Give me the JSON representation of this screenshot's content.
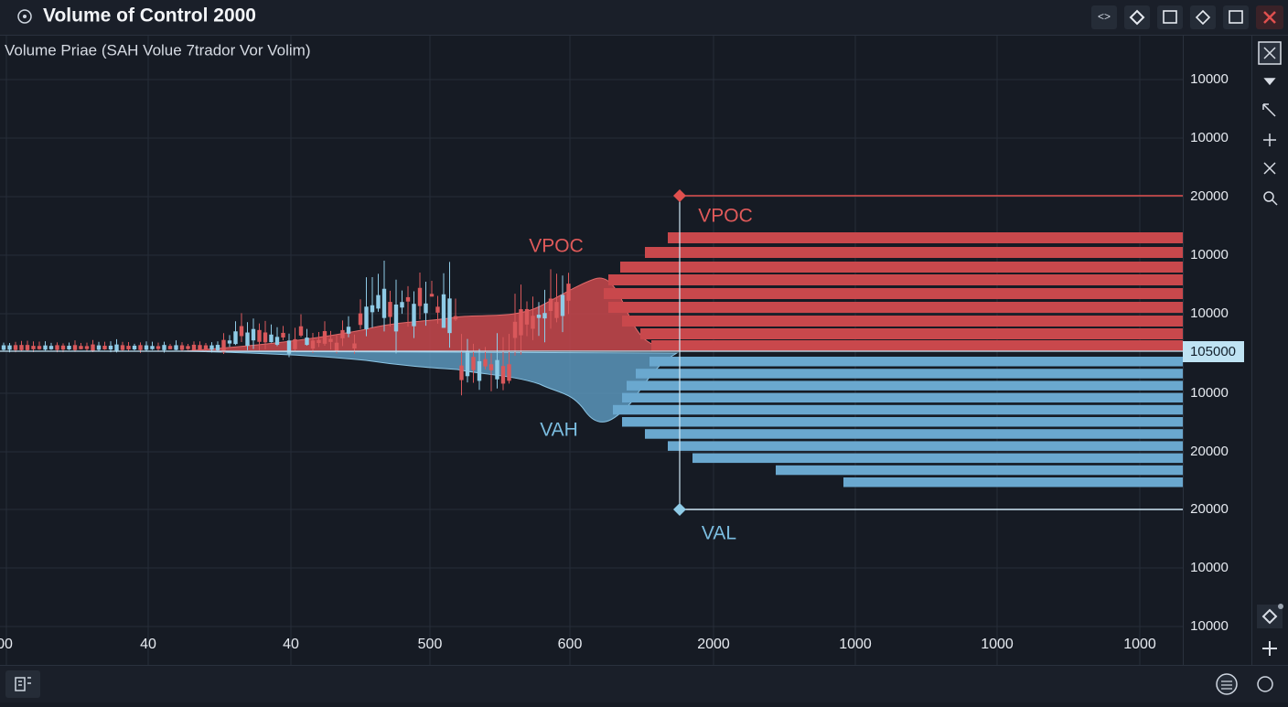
{
  "header": {
    "title": "Volume of Control 2000"
  },
  "subtitle": "Volume Priae (SAH Volue 7trador Vor Volim)",
  "price_axis": [
    "10000",
    "10000",
    "20000",
    "10000",
    "10000",
    "10000",
    "20000",
    "20000",
    "10000",
    "10000"
  ],
  "price_tag": "105000",
  "time_axis": [
    "00",
    "40",
    "40",
    "500",
    "600",
    "2000",
    "1000",
    "1000",
    "1000"
  ],
  "annotations": {
    "vpoc_left": "VPOC",
    "vpoc_right": "VPOC",
    "vah": "VAH",
    "val": "VAL"
  }
}
